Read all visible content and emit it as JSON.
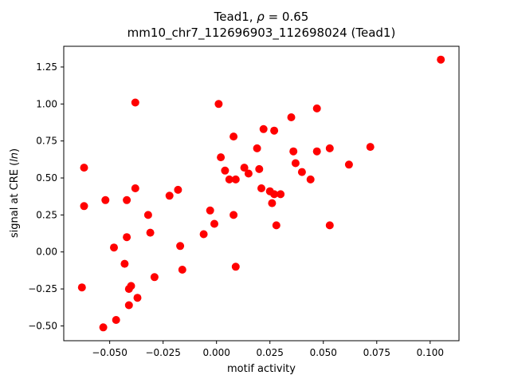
{
  "chart_data": {
    "type": "scatter",
    "title_parts": {
      "prefix": "Tead1, ",
      "rho": "ρ",
      "suffix": " = 0.65"
    },
    "subtitle": "mm10_chr7_112696903_112698024 (Tead1)",
    "xlabel": "motif activity",
    "ylabel_parts": {
      "prefix": "signal at CRE (",
      "italic": "ln",
      "suffix": ")"
    },
    "marker_color": "#ff0000",
    "grid": false,
    "legend": "none",
    "xlim": [
      -0.0715,
      0.1135
    ],
    "ylim": [
      -0.6,
      1.39
    ],
    "xticks": [
      -0.05,
      -0.025,
      0.0,
      0.025,
      0.05,
      0.075,
      0.1
    ],
    "xtick_labels": [
      "−0.050",
      "−0.025",
      "0.000",
      "0.025",
      "0.050",
      "0.075",
      "0.100"
    ],
    "yticks": [
      -0.5,
      -0.25,
      0.0,
      0.25,
      0.5,
      0.75,
      1.0,
      1.25
    ],
    "ytick_labels": [
      "−0.50",
      "−0.25",
      "0.00",
      "0.25",
      "0.50",
      "0.75",
      "1.00",
      "1.25"
    ],
    "points": [
      [
        -0.063,
        -0.24
      ],
      [
        -0.062,
        0.57
      ],
      [
        -0.062,
        0.31
      ],
      [
        -0.053,
        -0.51
      ],
      [
        -0.052,
        0.35
      ],
      [
        -0.048,
        0.03
      ],
      [
        -0.047,
        -0.46
      ],
      [
        -0.043,
        -0.08
      ],
      [
        -0.042,
        0.35
      ],
      [
        -0.042,
        0.1
      ],
      [
        -0.041,
        -0.25
      ],
      [
        -0.041,
        -0.36
      ],
      [
        -0.04,
        -0.23
      ],
      [
        -0.038,
        1.01
      ],
      [
        -0.038,
        0.43
      ],
      [
        -0.037,
        -0.31
      ],
      [
        -0.032,
        0.25
      ],
      [
        -0.031,
        0.13
      ],
      [
        -0.029,
        -0.17
      ],
      [
        -0.022,
        0.38
      ],
      [
        -0.018,
        0.42
      ],
      [
        -0.017,
        0.04
      ],
      [
        -0.016,
        -0.12
      ],
      [
        -0.006,
        0.12
      ],
      [
        -0.003,
        0.28
      ],
      [
        -0.001,
        0.19
      ],
      [
        0.001,
        1.0
      ],
      [
        0.002,
        0.64
      ],
      [
        0.004,
        0.55
      ],
      [
        0.006,
        0.49
      ],
      [
        0.008,
        0.78
      ],
      [
        0.008,
        0.25
      ],
      [
        0.009,
        0.49
      ],
      [
        0.009,
        -0.1
      ],
      [
        0.013,
        0.57
      ],
      [
        0.015,
        0.53
      ],
      [
        0.019,
        0.7
      ],
      [
        0.02,
        0.56
      ],
      [
        0.021,
        0.43
      ],
      [
        0.022,
        0.83
      ],
      [
        0.025,
        0.41
      ],
      [
        0.026,
        0.33
      ],
      [
        0.027,
        0.82
      ],
      [
        0.027,
        0.39
      ],
      [
        0.028,
        0.18
      ],
      [
        0.03,
        0.39
      ],
      [
        0.035,
        0.91
      ],
      [
        0.036,
        0.68
      ],
      [
        0.037,
        0.6
      ],
      [
        0.04,
        0.54
      ],
      [
        0.044,
        0.49
      ],
      [
        0.047,
        0.97
      ],
      [
        0.047,
        0.68
      ],
      [
        0.053,
        0.7
      ],
      [
        0.053,
        0.18
      ],
      [
        0.062,
        0.59
      ],
      [
        0.072,
        0.71
      ],
      [
        0.105,
        1.3
      ]
    ]
  }
}
